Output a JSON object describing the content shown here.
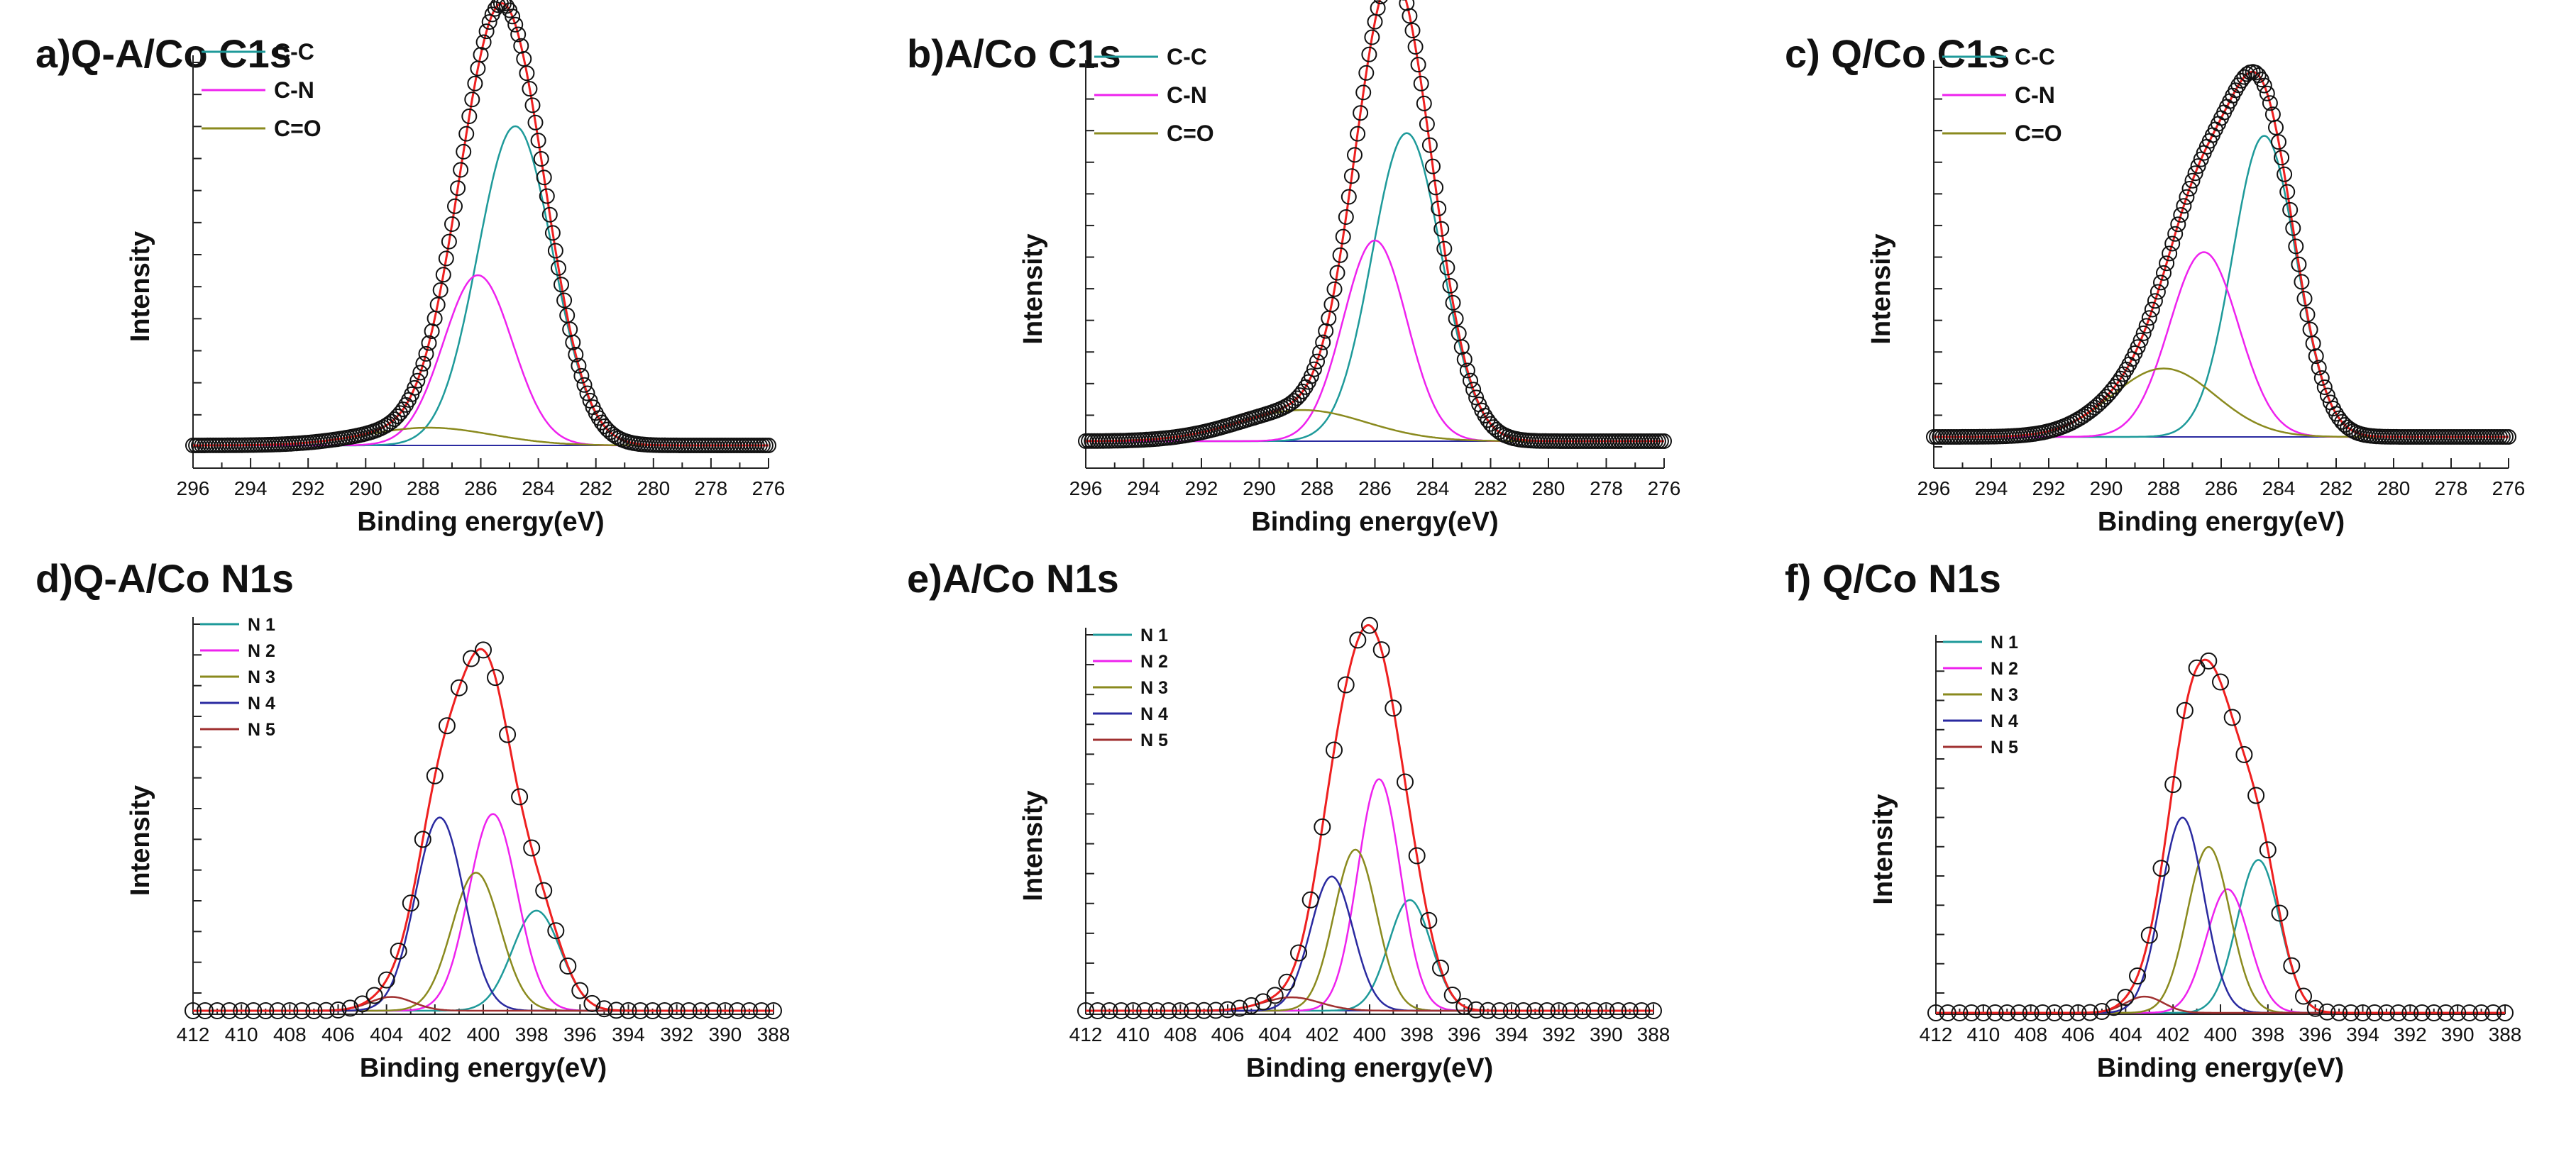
{
  "chart_data": [
    {
      "id": "a",
      "type": "line",
      "title": "a)Q-A/Co C1s",
      "xlabel": "Binding energy(eV)",
      "ylabel": "Intensity",
      "xlim": [
        296,
        276
      ],
      "xticks": [
        296,
        294,
        292,
        290,
        288,
        286,
        284,
        282,
        280,
        278,
        276
      ],
      "ylim": [
        0,
        1.08
      ],
      "legend": "top-left",
      "fit_color": "#ee2020",
      "series": [
        {
          "name": "C-C",
          "color": "#1e9a9a",
          "center": 284.8,
          "height": 0.9,
          "width": 1.3
        },
        {
          "name": "C-N",
          "color": "#ee22ee",
          "center": 286.1,
          "height": 0.48,
          "width": 1.2
        },
        {
          "name": "C=O",
          "color": "#8a8a1e",
          "center": 287.8,
          "height": 0.05,
          "width": 2.2
        }
      ]
    },
    {
      "id": "b",
      "type": "line",
      "title": "b)A/Co C1s",
      "xlabel": "Binding energy(eV)",
      "ylabel": "Intensity",
      "xlim": [
        296,
        276
      ],
      "xticks": [
        296,
        294,
        292,
        290,
        288,
        286,
        284,
        282,
        280,
        278,
        276
      ],
      "ylim": [
        0,
        1.08
      ],
      "legend": "top-left",
      "fit_color": "#ee2020",
      "series": [
        {
          "name": "C-C",
          "color": "#1e9a9a",
          "center": 284.9,
          "height": 0.89,
          "width": 1.2
        },
        {
          "name": "C-N",
          "color": "#ee22ee",
          "center": 286.0,
          "height": 0.58,
          "width": 1.1
        },
        {
          "name": "C=O",
          "color": "#8a8a1e",
          "center": 288.5,
          "height": 0.09,
          "width": 2.2
        }
      ]
    },
    {
      "id": "c",
      "type": "line",
      "title": "c) Q/Co C1s",
      "xlabel": "Binding energy(eV)",
      "ylabel": "Intensity",
      "xlim": [
        296,
        276
      ],
      "xticks": [
        296,
        294,
        292,
        290,
        288,
        286,
        284,
        282,
        280,
        278,
        276
      ],
      "ylim": [
        0,
        1.08
      ],
      "legend": "top-left",
      "fit_color": "#ee2020",
      "series": [
        {
          "name": "C-C",
          "color": "#1e9a9a",
          "center": 284.5,
          "height": 0.88,
          "width": 1.1
        },
        {
          "name": "C-N",
          "color": "#ee22ee",
          "center": 286.6,
          "height": 0.54,
          "width": 1.2
        },
        {
          "name": "C=O",
          "color": "#8a8a1e",
          "center": 288.0,
          "height": 0.2,
          "width": 1.8
        }
      ]
    },
    {
      "id": "d",
      "type": "line",
      "title": "d)Q-A/Co N1s",
      "xlabel": "Binding energy(eV)",
      "ylabel": "Intensity",
      "xlim": [
        412,
        388
      ],
      "xticks": [
        412,
        410,
        408,
        406,
        404,
        402,
        400,
        398,
        396,
        394,
        392,
        390,
        388
      ],
      "ylim": [
        0,
        1.12
      ],
      "legend": "top-left",
      "fit_color": "#ee2020",
      "series": [
        {
          "name": "N 1",
          "color": "#1e9a9a",
          "center": 397.8,
          "height": 0.29,
          "width": 1.0
        },
        {
          "name": "N 2",
          "color": "#ee22ee",
          "center": 399.6,
          "height": 0.57,
          "width": 1.0
        },
        {
          "name": "N 3",
          "color": "#8a8a1e",
          "center": 400.3,
          "height": 0.4,
          "width": 1.0
        },
        {
          "name": "N 4",
          "color": "#2a2aa0",
          "center": 401.8,
          "height": 0.56,
          "width": 1.0
        },
        {
          "name": "N 5",
          "color": "#a03030",
          "center": 403.8,
          "height": 0.04,
          "width": 0.9
        }
      ]
    },
    {
      "id": "e",
      "type": "line",
      "title": "e)A/Co N1s",
      "xlabel": "Binding energy(eV)",
      "ylabel": "Intensity",
      "xlim": [
        412,
        388
      ],
      "xticks": [
        412,
        410,
        408,
        406,
        404,
        402,
        400,
        398,
        396,
        394,
        392,
        390,
        388
      ],
      "ylim": [
        0,
        1.12
      ],
      "legend": "top-left",
      "fit_color": "#ee2020",
      "series": [
        {
          "name": "N 1",
          "color": "#1e9a9a",
          "center": 398.3,
          "height": 0.33,
          "width": 0.9
        },
        {
          "name": "N 2",
          "color": "#ee22ee",
          "center": 399.6,
          "height": 0.69,
          "width": 0.9
        },
        {
          "name": "N 3",
          "color": "#8a8a1e",
          "center": 400.6,
          "height": 0.48,
          "width": 0.9
        },
        {
          "name": "N 4",
          "color": "#2a2aa0",
          "center": 401.6,
          "height": 0.4,
          "width": 0.9
        },
        {
          "name": "N 5",
          "color": "#a03030",
          "center": 403.3,
          "height": 0.04,
          "width": 1.2
        }
      ]
    },
    {
      "id": "f",
      "type": "line",
      "title": "f) Q/Co N1s",
      "xlabel": "Binding energy(eV)",
      "ylabel": "Intensity",
      "xlim": [
        412,
        388
      ],
      "xticks": [
        412,
        410,
        408,
        406,
        404,
        402,
        400,
        398,
        396,
        394,
        392,
        390,
        388
      ],
      "ylim": [
        0,
        1.14
      ],
      "legend": "top-left",
      "fit_color": "#ee2020",
      "series": [
        {
          "name": "N 1",
          "color": "#1e9a9a",
          "center": 398.4,
          "height": 0.47,
          "width": 0.9
        },
        {
          "name": "N 2",
          "color": "#ee22ee",
          "center": 399.7,
          "height": 0.38,
          "width": 0.9
        },
        {
          "name": "N 3",
          "color": "#8a8a1e",
          "center": 400.5,
          "height": 0.51,
          "width": 0.9
        },
        {
          "name": "N 4",
          "color": "#2a2aa0",
          "center": 401.6,
          "height": 0.6,
          "width": 0.9
        },
        {
          "name": "N 5",
          "color": "#a03030",
          "center": 403.2,
          "height": 0.05,
          "width": 0.8
        }
      ]
    }
  ]
}
